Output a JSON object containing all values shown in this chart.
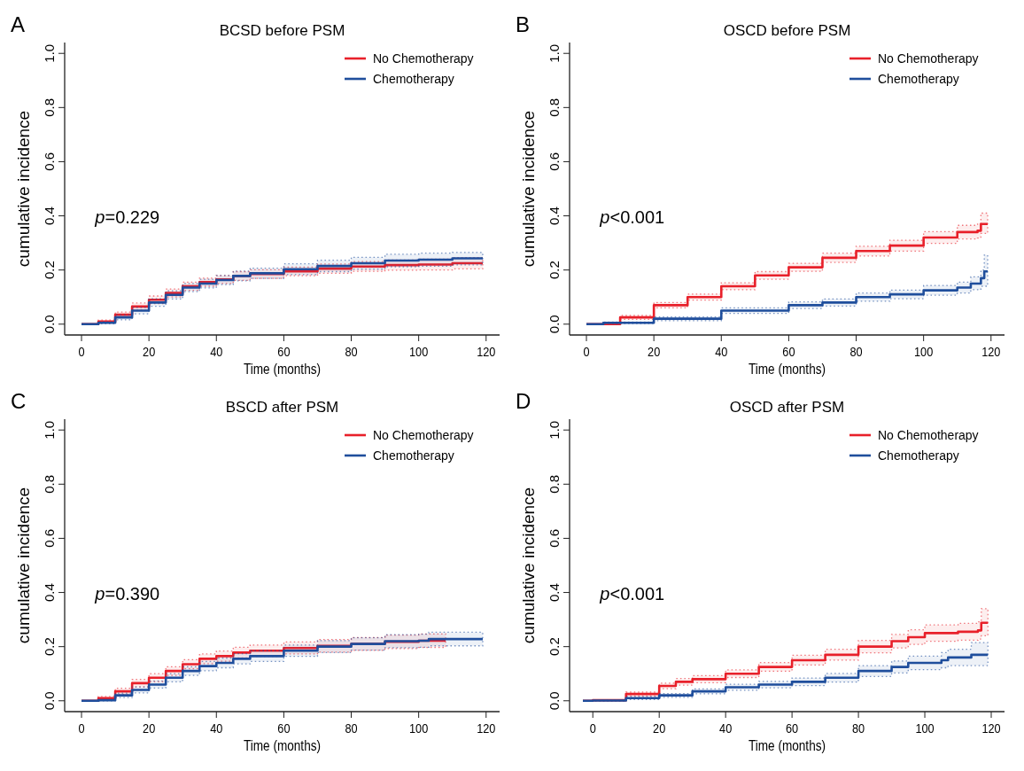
{
  "chart_data": [
    {
      "type": "step",
      "title": "BCSD before PSM",
      "xlabel": "Time (months)",
      "ylabel": "cumulative incidence",
      "annotations": [
        "A",
        "p=0.229"
      ],
      "legend": "top right",
      "xlim": [
        -5,
        124
      ],
      "ylim": [
        -0.04,
        1.04
      ],
      "xticks": [
        0,
        20,
        40,
        60,
        80,
        100,
        120
      ],
      "yticks": [
        {
          "value": 0,
          "label": "0.0"
        },
        {
          "value": 0.2,
          "label": "0.2"
        },
        {
          "value": 0.4,
          "label": "0.4"
        },
        {
          "value": 0.6,
          "label": "0.6"
        },
        {
          "value": 0.8,
          "label": "0.8"
        },
        {
          "value": 1,
          "label": "1.0"
        }
      ],
      "series": [
        {
          "name": "No Chemotherapy",
          "color": "#e8202a",
          "x": [
            0,
            3,
            5,
            10,
            15,
            20,
            25,
            30,
            35,
            40,
            45,
            50,
            60,
            70,
            80,
            90,
            100,
            110,
            119
          ],
          "values": [
            0,
            0,
            0.01,
            0.035,
            0.065,
            0.09,
            0.115,
            0.14,
            0.155,
            0.165,
            0.178,
            0.185,
            0.195,
            0.205,
            0.213,
            0.218,
            0.22,
            0.225,
            0.225
          ],
          "lower": [
            0,
            0,
            0.005,
            0.025,
            0.052,
            0.076,
            0.1,
            0.125,
            0.14,
            0.15,
            0.162,
            0.169,
            0.179,
            0.188,
            0.195,
            0.199,
            0.2,
            0.204,
            0.204
          ],
          "upper": [
            0,
            0,
            0.015,
            0.045,
            0.078,
            0.104,
            0.13,
            0.155,
            0.17,
            0.18,
            0.194,
            0.201,
            0.211,
            0.222,
            0.231,
            0.237,
            0.24,
            0.246,
            0.246
          ]
        },
        {
          "name": "Chemotherapy",
          "color": "#1f4e9c",
          "x": [
            0,
            3,
            5,
            10,
            15,
            20,
            25,
            30,
            35,
            40,
            45,
            50,
            60,
            70,
            80,
            90,
            100,
            110,
            119
          ],
          "values": [
            0,
            0,
            0.005,
            0.025,
            0.05,
            0.08,
            0.108,
            0.135,
            0.15,
            0.163,
            0.178,
            0.188,
            0.203,
            0.215,
            0.225,
            0.235,
            0.238,
            0.243,
            0.243
          ],
          "lower": [
            0,
            0,
            0.001,
            0.016,
            0.038,
            0.066,
            0.093,
            0.12,
            0.134,
            0.146,
            0.16,
            0.169,
            0.183,
            0.194,
            0.203,
            0.212,
            0.214,
            0.219,
            0.219
          ],
          "upper": [
            0,
            0,
            0.009,
            0.034,
            0.062,
            0.094,
            0.123,
            0.15,
            0.166,
            0.18,
            0.196,
            0.207,
            0.223,
            0.236,
            0.247,
            0.258,
            0.262,
            0.265,
            0.265
          ]
        }
      ]
    },
    {
      "type": "step",
      "title": "OSCD before PSM",
      "xlabel": "Time (months)",
      "ylabel": "cumulative incidence",
      "annotations": [
        "B",
        "p<0.001"
      ],
      "legend": "top right",
      "xlim": [
        -5,
        124
      ],
      "ylim": [
        -0.04,
        1.04
      ],
      "xticks": [
        0,
        20,
        40,
        60,
        80,
        100,
        120
      ],
      "yticks": [
        {
          "value": 0,
          "label": "0.0"
        },
        {
          "value": 0.2,
          "label": "0.2"
        },
        {
          "value": 0.4,
          "label": "0.4"
        },
        {
          "value": 0.6,
          "label": "0.6"
        },
        {
          "value": 0.8,
          "label": "0.8"
        },
        {
          "value": 1,
          "label": "1.0"
        }
      ],
      "series": [
        {
          "name": "No Chemotherapy",
          "color": "#e8202a",
          "x": [
            0,
            3,
            10,
            20,
            30,
            40,
            50,
            60,
            70,
            80,
            90,
            100,
            110,
            116,
            117,
            119
          ],
          "values": [
            0,
            0,
            0.025,
            0.07,
            0.1,
            0.14,
            0.18,
            0.21,
            0.245,
            0.27,
            0.29,
            0.32,
            0.34,
            0.345,
            0.37,
            0.37
          ],
          "lower": [
            0,
            0,
            0.018,
            0.06,
            0.089,
            0.127,
            0.166,
            0.195,
            0.228,
            0.252,
            0.27,
            0.298,
            0.315,
            0.318,
            0.335,
            0.335
          ],
          "upper": [
            0,
            0,
            0.032,
            0.08,
            0.111,
            0.153,
            0.194,
            0.225,
            0.262,
            0.288,
            0.31,
            0.342,
            0.365,
            0.372,
            0.41,
            0.41
          ]
        },
        {
          "name": "Chemotherapy",
          "color": "#1f4e9c",
          "x": [
            0,
            5,
            20,
            40,
            60,
            70,
            80,
            90,
            100,
            110,
            114,
            117,
            118,
            119
          ],
          "values": [
            0,
            0.005,
            0.02,
            0.05,
            0.07,
            0.08,
            0.1,
            0.11,
            0.125,
            0.135,
            0.15,
            0.17,
            0.195,
            0.195
          ],
          "lower": [
            0,
            0.002,
            0.013,
            0.04,
            0.058,
            0.067,
            0.085,
            0.094,
            0.107,
            0.115,
            0.127,
            0.14,
            0.14,
            0.14
          ],
          "upper": [
            0,
            0.008,
            0.027,
            0.06,
            0.082,
            0.093,
            0.115,
            0.126,
            0.143,
            0.155,
            0.175,
            0.2,
            0.255,
            0.255
          ]
        }
      ]
    },
    {
      "type": "step",
      "title": "BSCD after PSM",
      "xlabel": "Time (months)",
      "ylabel": "cumulative incidence",
      "annotations": [
        "C",
        "p=0.390"
      ],
      "legend": "top right",
      "xlim": [
        -5,
        124
      ],
      "ylim": [
        -0.04,
        1.04
      ],
      "xticks": [
        0,
        20,
        40,
        60,
        80,
        100,
        120
      ],
      "yticks": [
        {
          "value": 0,
          "label": "0.0"
        },
        {
          "value": 0.2,
          "label": "0.2"
        },
        {
          "value": 0.4,
          "label": "0.4"
        },
        {
          "value": 0.6,
          "label": "0.6"
        },
        {
          "value": 0.8,
          "label": "0.8"
        },
        {
          "value": 1,
          "label": "1.0"
        }
      ],
      "series": [
        {
          "name": "No Chemotherapy",
          "color": "#e8202a",
          "x": [
            0,
            3,
            5,
            10,
            15,
            20,
            25,
            30,
            35,
            40,
            45,
            50,
            60,
            70,
            80,
            90,
            100,
            108
          ],
          "values": [
            0,
            0,
            0.01,
            0.035,
            0.065,
            0.085,
            0.11,
            0.135,
            0.155,
            0.165,
            0.178,
            0.185,
            0.195,
            0.203,
            0.21,
            0.218,
            0.222,
            0.222
          ],
          "lower": [
            0,
            0,
            0.004,
            0.024,
            0.051,
            0.07,
            0.094,
            0.118,
            0.137,
            0.146,
            0.158,
            0.164,
            0.173,
            0.18,
            0.186,
            0.193,
            0.197,
            0.197
          ],
          "upper": [
            0,
            0,
            0.016,
            0.046,
            0.079,
            0.1,
            0.126,
            0.152,
            0.173,
            0.184,
            0.198,
            0.206,
            0.217,
            0.226,
            0.234,
            0.243,
            0.247,
            0.247
          ]
        },
        {
          "name": "Chemotherapy",
          "color": "#1f4e9c",
          "x": [
            0,
            5,
            10,
            15,
            20,
            25,
            30,
            35,
            40,
            45,
            50,
            60,
            70,
            80,
            90,
            100,
            103,
            119
          ],
          "values": [
            0,
            0.002,
            0.02,
            0.04,
            0.06,
            0.085,
            0.11,
            0.128,
            0.14,
            0.155,
            0.165,
            0.185,
            0.2,
            0.21,
            0.22,
            0.222,
            0.228,
            0.228
          ],
          "lower": [
            0,
            0,
            0.012,
            0.029,
            0.047,
            0.07,
            0.094,
            0.111,
            0.122,
            0.136,
            0.145,
            0.164,
            0.178,
            0.187,
            0.196,
            0.198,
            0.203,
            0.203
          ],
          "upper": [
            0,
            0.004,
            0.028,
            0.051,
            0.073,
            0.1,
            0.126,
            0.145,
            0.158,
            0.174,
            0.185,
            0.206,
            0.222,
            0.233,
            0.244,
            0.246,
            0.253,
            0.253
          ]
        }
      ]
    },
    {
      "type": "step",
      "title": "OSCD after PSM",
      "xlabel": "Time (months)",
      "ylabel": "cumulative incidence",
      "annotations": [
        "D",
        "p<0.001"
      ],
      "legend": "top right",
      "xlim": [
        -7,
        124
      ],
      "ylim": [
        -0.04,
        1.04
      ],
      "xticks": [
        0,
        20,
        40,
        60,
        80,
        100,
        120
      ],
      "yticks": [
        {
          "value": 0,
          "label": "0.0"
        },
        {
          "value": 0.2,
          "label": "0.2"
        },
        {
          "value": 0.4,
          "label": "0.4"
        },
        {
          "value": 0.6,
          "label": "0.6"
        },
        {
          "value": 0.8,
          "label": "0.8"
        },
        {
          "value": 1,
          "label": "1.0"
        }
      ],
      "series": [
        {
          "name": "No Chemotherapy",
          "color": "#e8202a",
          "x": [
            -3,
            0,
            10,
            20,
            25,
            30,
            40,
            50,
            60,
            70,
            80,
            90,
            95,
            100,
            110,
            116,
            117,
            119
          ],
          "values": [
            0,
            0.002,
            0.025,
            0.055,
            0.07,
            0.08,
            0.1,
            0.125,
            0.15,
            0.17,
            0.2,
            0.22,
            0.235,
            0.25,
            0.255,
            0.26,
            0.288,
            0.288
          ],
          "lower": [
            0,
            0,
            0.018,
            0.045,
            0.058,
            0.067,
            0.086,
            0.109,
            0.132,
            0.15,
            0.177,
            0.195,
            0.208,
            0.22,
            0.224,
            0.228,
            0.24,
            0.24
          ],
          "upper": [
            0,
            0.004,
            0.032,
            0.065,
            0.082,
            0.093,
            0.114,
            0.141,
            0.168,
            0.19,
            0.223,
            0.245,
            0.262,
            0.28,
            0.286,
            0.292,
            0.34,
            0.34
          ]
        },
        {
          "name": "Chemotherapy",
          "color": "#1f4e9c",
          "x": [
            -3,
            0,
            10,
            20,
            30,
            40,
            50,
            60,
            70,
            80,
            90,
            95,
            100,
            105,
            107,
            113,
            114,
            119
          ],
          "values": [
            0,
            0.001,
            0.01,
            0.02,
            0.035,
            0.05,
            0.06,
            0.07,
            0.085,
            0.11,
            0.125,
            0.14,
            0.14,
            0.15,
            0.16,
            0.16,
            0.17,
            0.17
          ],
          "lower": [
            0,
            0,
            0.005,
            0.013,
            0.026,
            0.039,
            0.048,
            0.056,
            0.069,
            0.09,
            0.103,
            0.115,
            0.115,
            0.122,
            0.13,
            0.13,
            0.13,
            0.13
          ],
          "upper": [
            0,
            0.002,
            0.015,
            0.027,
            0.044,
            0.061,
            0.072,
            0.084,
            0.101,
            0.13,
            0.147,
            0.165,
            0.165,
            0.178,
            0.19,
            0.19,
            0.215,
            0.215
          ]
        }
      ]
    }
  ]
}
